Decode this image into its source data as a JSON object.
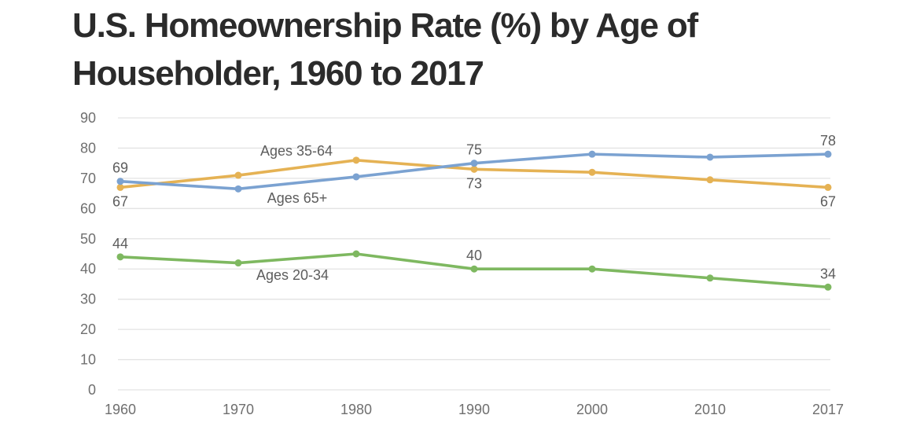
{
  "page": {
    "background": "#ffffff"
  },
  "title": {
    "full": "U.S. Homeownership Rate (%) by Age of Householder, 1960 to 2017",
    "line1": "U.S. Homeownership Rate (%) by Age of",
    "line2": "Householder, 1960 to 2017",
    "color": "#2b2b2b"
  },
  "chart_data": {
    "type": "line",
    "title": "U.S. Homeownership Rate (%) by Age of Householder, 1960 to 2017",
    "x": [
      "1960",
      "1970",
      "1980",
      "1990",
      "2000",
      "2010",
      "2017"
    ],
    "series": [
      {
        "name": "Ages 35-64",
        "color": "#e5b254",
        "values": [
          67,
          71,
          76,
          73,
          72,
          69.5,
          67
        ],
        "point_label_side": "below"
      },
      {
        "name": "Ages 65+",
        "color": "#7ba2d1",
        "values": [
          69,
          66.5,
          70.5,
          75,
          78,
          77,
          78
        ],
        "point_label_side": "above"
      },
      {
        "name": "Ages 20-34",
        "color": "#7eb860",
        "values": [
          44,
          42,
          45,
          40,
          40,
          37,
          34
        ],
        "point_label_side": "above"
      }
    ],
    "point_labels": [
      {
        "series": "Ages 65+",
        "x": "1960",
        "text": "69"
      },
      {
        "series": "Ages 65+",
        "x": "1990",
        "text": "75"
      },
      {
        "series": "Ages 65+",
        "x": "2017",
        "text": "78"
      },
      {
        "series": "Ages 35-64",
        "x": "1960",
        "text": "67"
      },
      {
        "series": "Ages 35-64",
        "x": "1990",
        "text": "73"
      },
      {
        "series": "Ages 35-64",
        "x": "2017",
        "text": "67"
      },
      {
        "series": "Ages 20-34",
        "x": "1960",
        "text": "44"
      },
      {
        "series": "Ages 20-34",
        "x": "1990",
        "text": "40"
      },
      {
        "series": "Ages 20-34",
        "x": "2017",
        "text": "34"
      }
    ],
    "series_annotations": [
      {
        "text": "Ages 35-64"
      },
      {
        "text": "Ages 65+"
      },
      {
        "text": "Ages 20-34"
      }
    ],
    "y_ticks": [
      "0",
      "10",
      "20",
      "30",
      "40",
      "50",
      "60",
      "70",
      "80",
      "90"
    ],
    "ylim": [
      0,
      90
    ],
    "xlabel": "",
    "ylabel": "",
    "grid": true,
    "legend_position": "inline-labels",
    "colors": {
      "gridline": "#e3e3e3",
      "tick_text": "#6f6f6f",
      "annotation_text": "#5d5d5d",
      "point_label_text": "#5d5d5d"
    }
  }
}
